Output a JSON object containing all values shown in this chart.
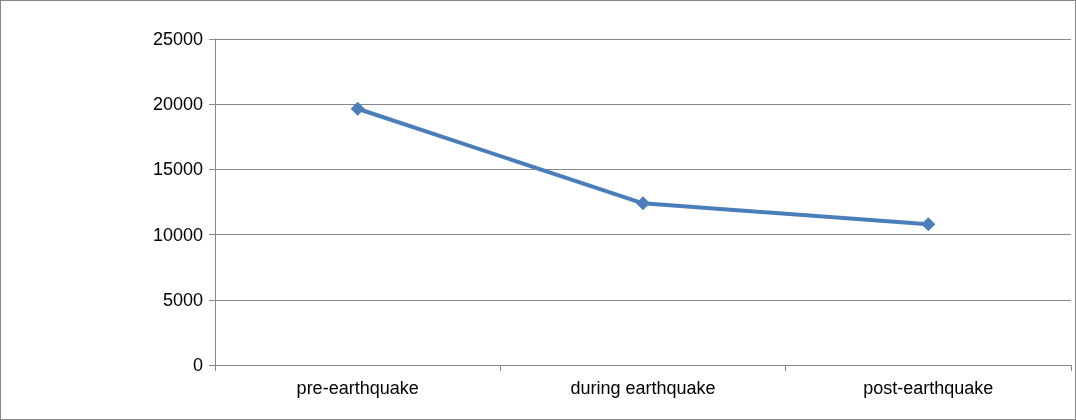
{
  "chart_data": {
    "type": "line",
    "categories": [
      "pre-earthquake",
      "during earthquake",
      "post-earthquake"
    ],
    "series": [
      {
        "color": "#4a7ebb",
        "values": [
          19650,
          12400,
          10800
        ]
      }
    ],
    "ylim": [
      0,
      25000
    ],
    "yticks": [
      0,
      5000,
      10000,
      15000,
      20000,
      25000
    ],
    "grid": "y",
    "marker": "diamond",
    "line_style": "solid"
  }
}
